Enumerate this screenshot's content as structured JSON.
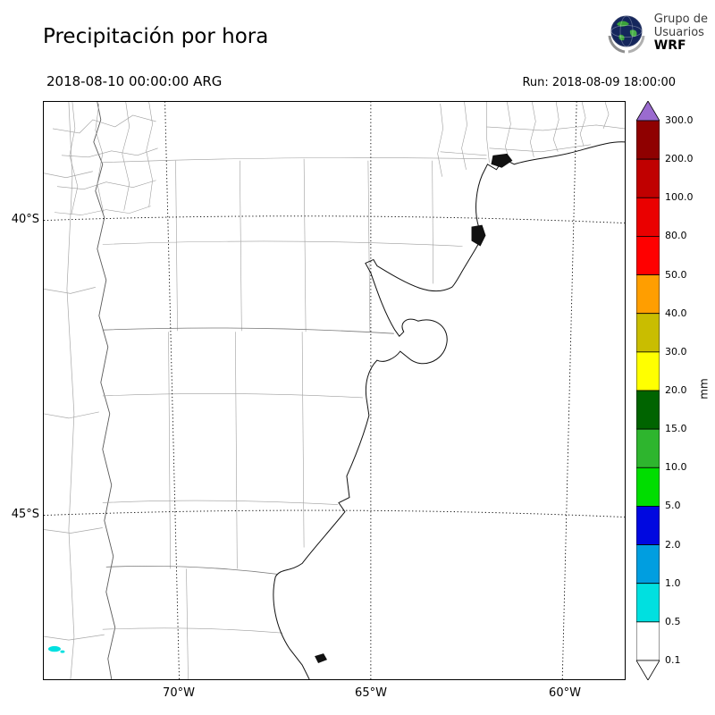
{
  "header": {
    "title": "Precipitación por hora",
    "logo": {
      "line1": "Grupo de",
      "line2": "Usuarios",
      "line3": "WRF"
    }
  },
  "subheader": {
    "valid_time": "2018-08-10 00:00:00 ARG",
    "run_time": "Run: 2018-08-09 18:00:00"
  },
  "map": {
    "lat_ticks": [
      {
        "label": "40°S"
      },
      {
        "label": "45°S"
      }
    ],
    "lon_ticks": [
      {
        "label": "70°W"
      },
      {
        "label": "65°W"
      },
      {
        "label": "60°W"
      }
    ],
    "precip_patch_color": "#00e0e0"
  },
  "colorbar": {
    "unit": "mm",
    "levels": [
      "300.0",
      "200.0",
      "100.0",
      "80.0",
      "50.0",
      "40.0",
      "30.0",
      "20.0",
      "15.0",
      "10.0",
      "5.0",
      "2.0",
      "1.0",
      "0.5",
      "0.1"
    ],
    "segment_colors_top_to_bottom": [
      "#8f0000",
      "#c00000",
      "#ea0000",
      "#ff0000",
      "#ff9e00",
      "#c9bd00",
      "#ffff00",
      "#006400",
      "#2eb52e",
      "#00dd00",
      "#0008e0",
      "#009ee0",
      "#00e0e0",
      "#ffffff"
    ],
    "arrow_top_color": "#9a6bcf",
    "arrow_bottom_color": "#ffffff"
  }
}
